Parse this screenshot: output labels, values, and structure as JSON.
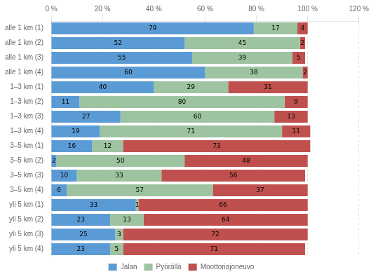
{
  "chart_data": {
    "type": "bar",
    "orientation": "horizontal",
    "stacked": true,
    "categories": [
      "alle 1 km (1)",
      "alle 1 km (2)",
      "alle 1 km (3)",
      "alle 1 km (4)",
      "1–3 km (1)",
      "1–3 km (2)",
      "1–3 km (3)",
      "1–3 km (4)",
      "3–5 km (1)",
      "3–5 km (2)",
      "3–5 km (3)",
      "3–5 km (4)",
      "yli 5 km (1)",
      "yli 5 km (2)",
      "yli 5 km (3)",
      "yli 5 km (4)"
    ],
    "series": [
      {
        "name": "Jalan",
        "color": "#5b9bd5",
        "values": [
          79,
          52,
          55,
          60,
          40,
          11,
          27,
          19,
          16,
          2,
          10,
          6,
          33,
          23,
          25,
          23
        ]
      },
      {
        "name": "Pyörällä",
        "color": "#9dc3a0",
        "values": [
          17,
          45,
          39,
          38,
          29,
          80,
          60,
          71,
          12,
          50,
          33,
          57,
          1,
          13,
          3,
          5
        ]
      },
      {
        "name": "Moottoriajoneuvo",
        "color": "#c0504d",
        "values": [
          4,
          2,
          5,
          2,
          31,
          9,
          13,
          11,
          73,
          48,
          56,
          37,
          66,
          64,
          72,
          71
        ]
      }
    ],
    "xlim": [
      0,
      120
    ],
    "xticks": [
      {
        "value": 0,
        "label": "0 %"
      },
      {
        "value": 20,
        "label": "20 %"
      },
      {
        "value": 40,
        "label": "40 %"
      },
      {
        "value": 60,
        "label": "60 %"
      },
      {
        "value": 80,
        "label": "80 %"
      },
      {
        "value": 100,
        "label": "100 %"
      },
      {
        "value": 120,
        "label": "120 %"
      }
    ],
    "grid": true,
    "legend": "bottom",
    "data_labels": true
  }
}
